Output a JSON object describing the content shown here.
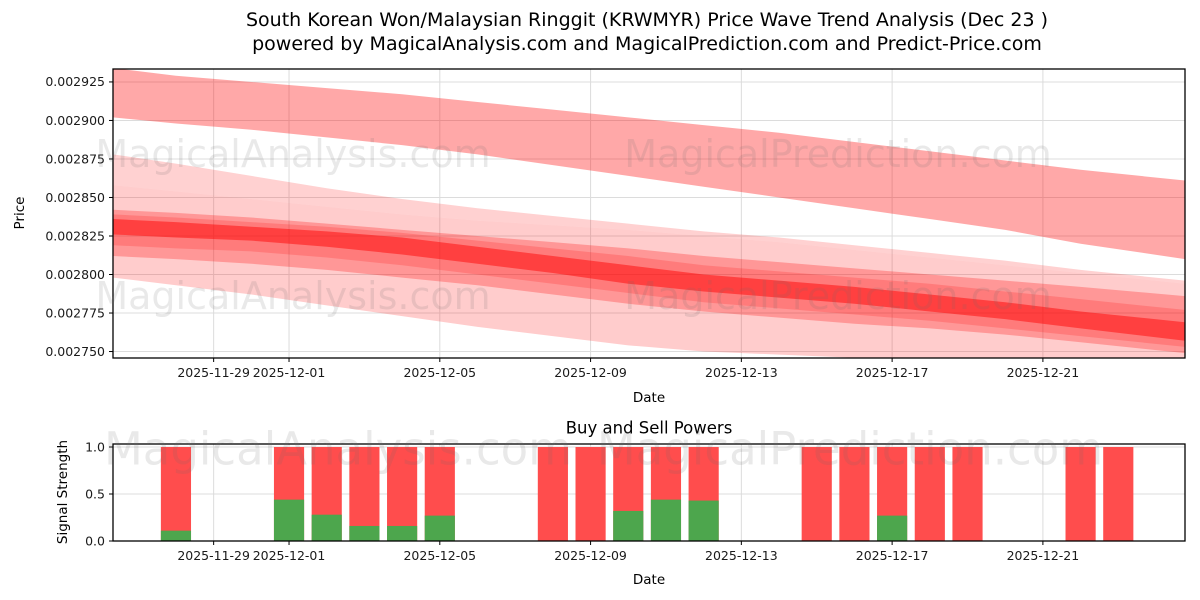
{
  "title": {
    "line1": "South Korean Won/Malaysian Ringgit (KRWMYR) Price Wave Trend Analysis (Dec 23 )",
    "line2": "powered by MagicalAnalysis.com and MagicalPrediction.com and Predict-Price.com"
  },
  "watermarks": {
    "analysis": "MagicalAnalysis.com",
    "prediction": "MagicalPrediction.com"
  },
  "colors": {
    "band_red": "#ff0000",
    "sell_bar": "#ff4d4d",
    "buy_bar": "#4da64d",
    "grid": "#dcdcdc",
    "axis_frame": "#000000",
    "tick_text": "#1a1a1a"
  },
  "chart_data": [
    {
      "type": "area",
      "name": "price-wave-chart",
      "ylabel": "Price",
      "xlabel": "Date",
      "grid": true,
      "xlim_days_from_dec01": [
        -4.67,
        23.77
      ],
      "ylim": [
        0.0027458,
        0.0029334
      ],
      "yticks": [
        0.00275,
        0.002775,
        0.0028,
        0.002825,
        0.00285,
        0.002875,
        0.0029,
        0.002925
      ],
      "xticks": [
        {
          "label": "2025-11-29",
          "day": -2
        },
        {
          "label": "2025-12-01",
          "day": 0
        },
        {
          "label": "2025-12-05",
          "day": 4
        },
        {
          "label": "2025-12-09",
          "day": 8
        },
        {
          "label": "2025-12-13",
          "day": 12
        },
        {
          "label": "2025-12-17",
          "day": 16
        },
        {
          "label": "2025-12-21",
          "day": 20
        }
      ],
      "x_days": [
        -4.67,
        -3,
        -1,
        1,
        3,
        5,
        7,
        9,
        11,
        13,
        15,
        17,
        19,
        21,
        23.77
      ],
      "bands": [
        {
          "name": "upper-forecast-band",
          "alpha": 0.34,
          "top": [
            0.002934,
            0.002929,
            0.002925,
            0.002921,
            0.002917,
            0.002912,
            0.002907,
            0.002902,
            0.002897,
            0.002892,
            0.002886,
            0.00288,
            0.002874,
            0.002868,
            0.002861
          ],
          "bottom": [
            0.002902,
            0.002898,
            0.002894,
            0.002889,
            0.002884,
            0.002878,
            0.002871,
            0.002864,
            0.002857,
            0.00285,
            0.002843,
            0.002836,
            0.002829,
            0.00282,
            0.00281
          ]
        },
        {
          "name": "mid-sliver-band",
          "alpha": 0.18,
          "top": [
            0.002878,
            0.002872,
            0.002864,
            0.002856,
            0.002849,
            0.002843,
            0.002838,
            0.002833,
            0.002828,
            0.002824,
            0.002819,
            0.002814,
            0.002809,
            0.002803,
            0.002796
          ],
          "bottom": [
            0.002858,
            0.002854,
            0.002849,
            0.002844,
            0.002839,
            0.002835,
            0.002832,
            0.002829,
            0.002825,
            0.002821,
            0.002816,
            0.002811,
            0.002806,
            0.002801,
            0.002794
          ]
        },
        {
          "name": "outer-envelope-band",
          "alpha": 0.2,
          "top": [
            0.002858,
            0.002854,
            0.002849,
            0.002844,
            0.002839,
            0.002835,
            0.002832,
            0.002829,
            0.002825,
            0.002821,
            0.002816,
            0.002811,
            0.002806,
            0.002801,
            0.002794
          ],
          "bottom": [
            0.002798,
            0.002793,
            0.002787,
            0.00278,
            0.002773,
            0.002766,
            0.00276,
            0.002754,
            0.00275,
            0.002748,
            0.002746,
            0.002744,
            0.002742,
            0.00274,
            0.002737
          ]
        },
        {
          "name": "dense-band",
          "alpha": 0.26,
          "top": [
            0.002842,
            0.00284,
            0.002837,
            0.002833,
            0.002829,
            0.002825,
            0.002821,
            0.002817,
            0.002812,
            0.002808,
            0.002804,
            0.0028,
            0.002796,
            0.002792,
            0.002786
          ],
          "bottom": [
            0.002812,
            0.00281,
            0.002807,
            0.002803,
            0.002798,
            0.002793,
            0.002787,
            0.002781,
            0.002776,
            0.002772,
            0.002768,
            0.002765,
            0.002761,
            0.002756,
            0.002749
          ]
        },
        {
          "name": "inner-band",
          "alpha": 0.18,
          "top": [
            0.002839,
            0.002837,
            0.002834,
            0.002831,
            0.002827,
            0.002822,
            0.002817,
            0.002812,
            0.002806,
            0.002802,
            0.002798,
            0.002794,
            0.002789,
            0.002784,
            0.002777
          ],
          "bottom": [
            0.002819,
            0.002817,
            0.002815,
            0.002811,
            0.002806,
            0.0028,
            0.002794,
            0.002788,
            0.002782,
            0.002778,
            0.002774,
            0.00277,
            0.002765,
            0.00276,
            0.002753
          ]
        },
        {
          "name": "core-band",
          "alpha": 0.48,
          "top": [
            0.002836,
            0.002834,
            0.002831,
            0.002828,
            0.002824,
            0.002818,
            0.002812,
            0.002806,
            0.0028,
            0.002796,
            0.002792,
            0.002787,
            0.002782,
            0.002776,
            0.002769
          ],
          "bottom": [
            0.002826,
            0.002824,
            0.002822,
            0.002818,
            0.002813,
            0.002807,
            0.002801,
            0.002794,
            0.002789,
            0.002785,
            0.002781,
            0.002776,
            0.002771,
            0.002765,
            0.002757
          ]
        }
      ]
    },
    {
      "type": "bar",
      "name": "buy-sell-powers-chart",
      "title": "Buy and Sell Powers",
      "ylabel": "Signal Strength",
      "xlabel": "Date",
      "grid": true,
      "bar_width_days": 0.8,
      "xlim_days_from_dec01": [
        -4.67,
        23.77
      ],
      "ylim": [
        0,
        1.032
      ],
      "yticks": [
        0.0,
        0.5,
        1.0
      ],
      "xticks": [
        {
          "label": "2025-11-29",
          "day": -2
        },
        {
          "label": "2025-12-01",
          "day": 0
        },
        {
          "label": "2025-12-05",
          "day": 4
        },
        {
          "label": "2025-12-09",
          "day": 8
        },
        {
          "label": "2025-12-13",
          "day": 12
        },
        {
          "label": "2025-12-17",
          "day": 16
        },
        {
          "label": "2025-12-21",
          "day": 20
        }
      ],
      "series": [
        {
          "name": "sell-power",
          "color_key": "sell_bar"
        },
        {
          "name": "buy-power",
          "color_key": "buy_bar"
        }
      ],
      "bars": [
        {
          "date": "2025-11-28",
          "day": -3,
          "sell": 1.0,
          "buy": 0.11
        },
        {
          "date": "2025-12-01",
          "day": 0,
          "sell": 1.0,
          "buy": 0.44
        },
        {
          "date": "2025-12-02",
          "day": 1,
          "sell": 1.0,
          "buy": 0.28
        },
        {
          "date": "2025-12-03",
          "day": 2,
          "sell": 1.0,
          "buy": 0.16
        },
        {
          "date": "2025-12-04",
          "day": 3,
          "sell": 1.0,
          "buy": 0.16
        },
        {
          "date": "2025-12-05",
          "day": 4,
          "sell": 1.0,
          "buy": 0.27
        },
        {
          "date": "2025-12-08",
          "day": 7,
          "sell": 1.0,
          "buy": 0.0
        },
        {
          "date": "2025-12-09",
          "day": 8,
          "sell": 1.0,
          "buy": 0.0
        },
        {
          "date": "2025-12-10",
          "day": 9,
          "sell": 1.0,
          "buy": 0.32
        },
        {
          "date": "2025-12-11",
          "day": 10,
          "sell": 1.0,
          "buy": 0.44
        },
        {
          "date": "2025-12-12",
          "day": 11,
          "sell": 1.0,
          "buy": 0.43
        },
        {
          "date": "2025-12-15",
          "day": 14,
          "sell": 1.0,
          "buy": 0.0
        },
        {
          "date": "2025-12-16",
          "day": 15,
          "sell": 1.0,
          "buy": 0.0
        },
        {
          "date": "2025-12-17",
          "day": 16,
          "sell": 1.0,
          "buy": 0.27
        },
        {
          "date": "2025-12-18",
          "day": 17,
          "sell": 1.0,
          "buy": 0.0
        },
        {
          "date": "2025-12-19",
          "day": 18,
          "sell": 1.0,
          "buy": 0.0
        },
        {
          "date": "2025-12-22",
          "day": 21,
          "sell": 1.0,
          "buy": 0.0
        },
        {
          "date": "2025-12-23",
          "day": 22,
          "sell": 1.0,
          "buy": 0.0
        }
      ]
    }
  ]
}
